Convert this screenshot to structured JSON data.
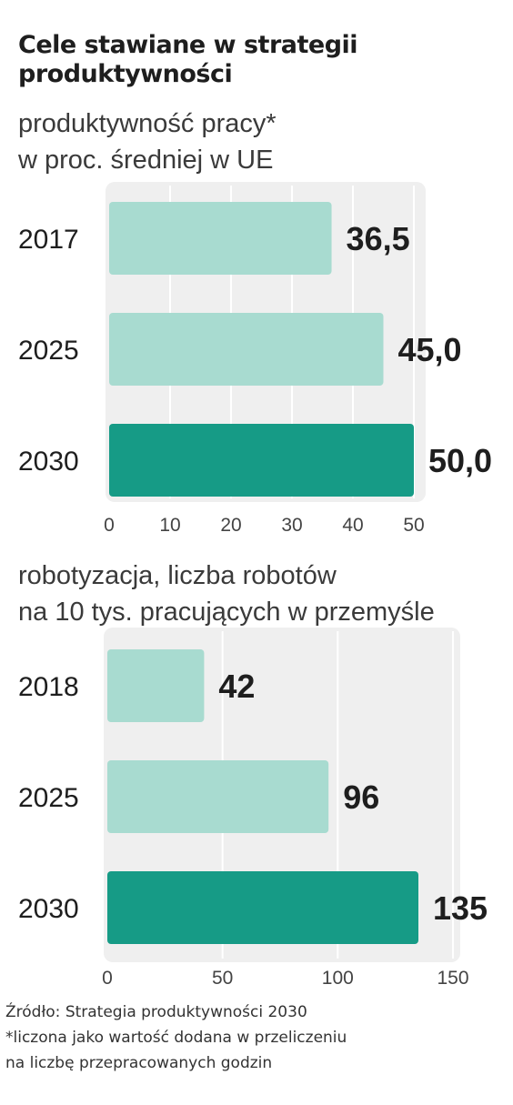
{
  "title_line1": "Cele stawiane w strategii",
  "title_line2": "produktywności",
  "colors": {
    "light_bar": "#a8dbd0",
    "dark_bar": "#169b86",
    "panel": "#efefef",
    "grid": "#ffffff",
    "text": "#1e1e1e"
  },
  "chart_data": [
    {
      "type": "bar",
      "orientation": "horizontal",
      "subtitle_line1": "produktywność pracy*",
      "subtitle_line2": "w proc. średniej w UE",
      "categories": [
        "2017",
        "2025",
        "2030"
      ],
      "values": [
        36.5,
        45.0,
        50.0
      ],
      "value_labels": [
        "36,5",
        "45,0",
        "50,0"
      ],
      "xlim": [
        0,
        50
      ],
      "ticks": [
        0,
        10,
        20,
        30,
        40,
        50
      ],
      "highlight_index": 2,
      "grid": true
    },
    {
      "type": "bar",
      "orientation": "horizontal",
      "subtitle_line1": "robotyzacja, liczba robotów",
      "subtitle_line2": "na 10 tys. pracujących w przemyśle",
      "categories": [
        "2018",
        "2025",
        "2030"
      ],
      "values": [
        42,
        96,
        135
      ],
      "value_labels": [
        "42",
        "96",
        "135"
      ],
      "xlim": [
        0,
        150
      ],
      "ticks": [
        0,
        50,
        100,
        150
      ],
      "highlight_index": 2,
      "grid": true
    }
  ],
  "footer": {
    "source": "Źródło: Strategia produktywności 2030",
    "note_line1": "*liczona jako wartość dodana w przeliczeniu",
    "note_line2": "na liczbę przepracowanych godzin"
  }
}
